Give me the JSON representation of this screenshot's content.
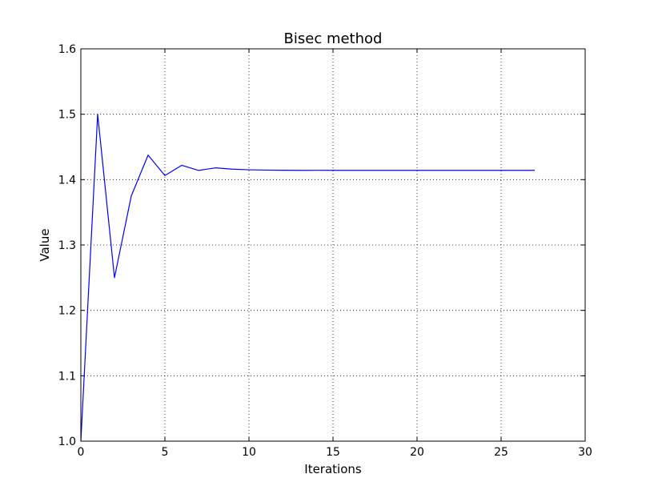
{
  "chart_data": {
    "type": "line",
    "title": "Bisec method",
    "xlabel": "Iterations",
    "ylabel": "Value",
    "xlim": [
      0,
      30
    ],
    "ylim": [
      1.0,
      1.6
    ],
    "xticks": [
      "0",
      "5",
      "10",
      "15",
      "20",
      "25",
      "30"
    ],
    "yticks": [
      "1.0",
      "1.1",
      "1.2",
      "1.3",
      "1.4",
      "1.5",
      "1.6"
    ],
    "grid": true,
    "series": [
      {
        "color": "#0000ff",
        "x": [
          0,
          1,
          2,
          3,
          4,
          5,
          6,
          7,
          8,
          9,
          10,
          11,
          12,
          13,
          14,
          15,
          16,
          17,
          18,
          19,
          20,
          21,
          22,
          23,
          24,
          25,
          26,
          27
        ],
        "y": [
          1.0,
          1.5,
          1.25,
          1.375,
          1.4375,
          1.40625,
          1.421875,
          1.4140625,
          1.41796875,
          1.416015625,
          1.4150390625,
          1.41455078125,
          1.414306640625,
          1.4141845703125,
          1.41424560546875,
          1.414215087890625,
          1.4141998291015625,
          1.4142074584960938,
          1.4142112731933594,
          1.4142131805419922,
          1.4142141342163086,
          1.4142136573791504,
          1.4142134189605713,
          1.4142135381698608,
          1.4142135977745056,
          1.4142135679721832,
          1.414213553071022,
          1.4142135605216026
        ]
      }
    ]
  }
}
